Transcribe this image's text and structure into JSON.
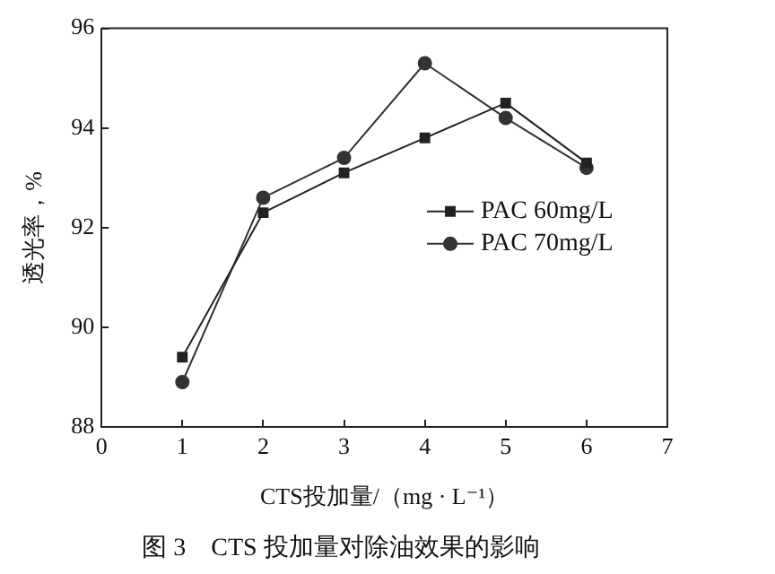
{
  "chart_data": {
    "type": "line",
    "title": "图 3　CTS 投加量对除油效果的影响",
    "xlabel": "CTS投加量/（mg · L⁻¹）",
    "ylabel": "透光率，%",
    "x": [
      1,
      2,
      3,
      4,
      5,
      6
    ],
    "xlim": [
      0,
      7
    ],
    "xticks": [
      0,
      1,
      2,
      3,
      4,
      5,
      6,
      7
    ],
    "ylim": [
      88,
      96
    ],
    "yticks": [
      88,
      90,
      92,
      94,
      96
    ],
    "series": [
      {
        "name": "PAC 60mg/L",
        "color": "#222222",
        "marker": "square",
        "values": [
          89.4,
          92.3,
          93.1,
          93.8,
          94.5,
          93.3
        ]
      },
      {
        "name": "PAC 70mg/L",
        "color": "#333333",
        "marker": "circle",
        "values": [
          88.9,
          92.6,
          93.4,
          95.3,
          94.2,
          93.2
        ]
      }
    ],
    "grid": false,
    "legend": "right"
  }
}
